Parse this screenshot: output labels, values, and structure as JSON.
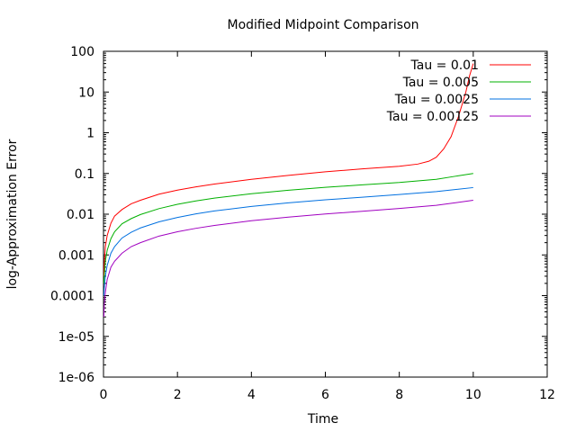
{
  "chart_data": {
    "type": "line",
    "title": "Modified Midpoint Comparison",
    "xlabel": "Time",
    "ylabel": "log-Approximation Error",
    "xlim": [
      0,
      12
    ],
    "ylim": [
      1e-06,
      100
    ],
    "yscale": "log",
    "grid": false,
    "legend_position": "top-right",
    "x_ticks": [
      0,
      2,
      4,
      6,
      8,
      10,
      12
    ],
    "x_tick_labels": [
      "0",
      "2",
      "4",
      "6",
      "8",
      "10",
      "12"
    ],
    "y_ticks": [
      1e-06,
      1e-05,
      0.0001,
      0.001,
      0.01,
      0.1,
      1,
      10,
      100
    ],
    "y_tick_labels": [
      "1e-06",
      "1e-05",
      "0.0001",
      "0.001",
      "0.01",
      "0.1",
      "1",
      "10",
      "100"
    ],
    "series": [
      {
        "name": "Tau = 0.01",
        "color": "#ff0000",
        "x": [
          0.01,
          0.02,
          0.05,
          0.1,
          0.2,
          0.3,
          0.5,
          0.75,
          1,
          1.5,
          2,
          2.5,
          3,
          4,
          5,
          6,
          7,
          8,
          8.5,
          8.8,
          9.0,
          9.2,
          9.4,
          9.6,
          9.8,
          9.9,
          10.0
        ],
        "y": [
          0.0003,
          0.0006,
          0.0016,
          0.003,
          0.006,
          0.009,
          0.013,
          0.018,
          0.022,
          0.031,
          0.039,
          0.047,
          0.055,
          0.072,
          0.09,
          0.11,
          0.13,
          0.15,
          0.17,
          0.2,
          0.25,
          0.4,
          0.8,
          2.5,
          10,
          25,
          50
        ]
      },
      {
        "name": "Tau = 0.005",
        "color": "#00b000",
        "x": [
          0.01,
          0.02,
          0.05,
          0.1,
          0.2,
          0.3,
          0.5,
          0.75,
          1,
          1.5,
          2,
          2.5,
          3,
          4,
          5,
          6,
          7,
          8,
          9,
          9.5,
          10
        ],
        "y": [
          0.0002,
          0.0003,
          0.0007,
          0.0013,
          0.0025,
          0.0037,
          0.0058,
          0.0078,
          0.0098,
          0.0137,
          0.0175,
          0.0212,
          0.0248,
          0.0318,
          0.0387,
          0.0456,
          0.0526,
          0.06,
          0.072,
          0.085,
          0.1
        ]
      },
      {
        "name": "Tau = 0.0025",
        "color": "#0070e0",
        "x": [
          0.01,
          0.02,
          0.05,
          0.1,
          0.2,
          0.3,
          0.5,
          0.75,
          1,
          1.5,
          2,
          2.5,
          3,
          4,
          5,
          6,
          7,
          8,
          9,
          10
        ],
        "y": [
          0.0001,
          0.00015,
          0.0003,
          0.00055,
          0.0011,
          0.0016,
          0.0026,
          0.0036,
          0.0046,
          0.0065,
          0.0083,
          0.0102,
          0.012,
          0.0155,
          0.019,
          0.0225,
          0.0262,
          0.0305,
          0.036,
          0.045
        ]
      },
      {
        "name": "Tau = 0.00125",
        "color": "#a000c0",
        "x": [
          0.01,
          0.02,
          0.05,
          0.1,
          0.2,
          0.3,
          0.5,
          0.75,
          1,
          1.5,
          2,
          2.5,
          3,
          4,
          5,
          6,
          7,
          8,
          9,
          10
        ],
        "y": [
          3e-05,
          6e-05,
          0.00012,
          0.00025,
          0.0005,
          0.0007,
          0.0011,
          0.0016,
          0.002,
          0.0029,
          0.0037,
          0.0045,
          0.0053,
          0.0069,
          0.0085,
          0.0101,
          0.0118,
          0.0138,
          0.0165,
          0.022
        ]
      }
    ]
  }
}
